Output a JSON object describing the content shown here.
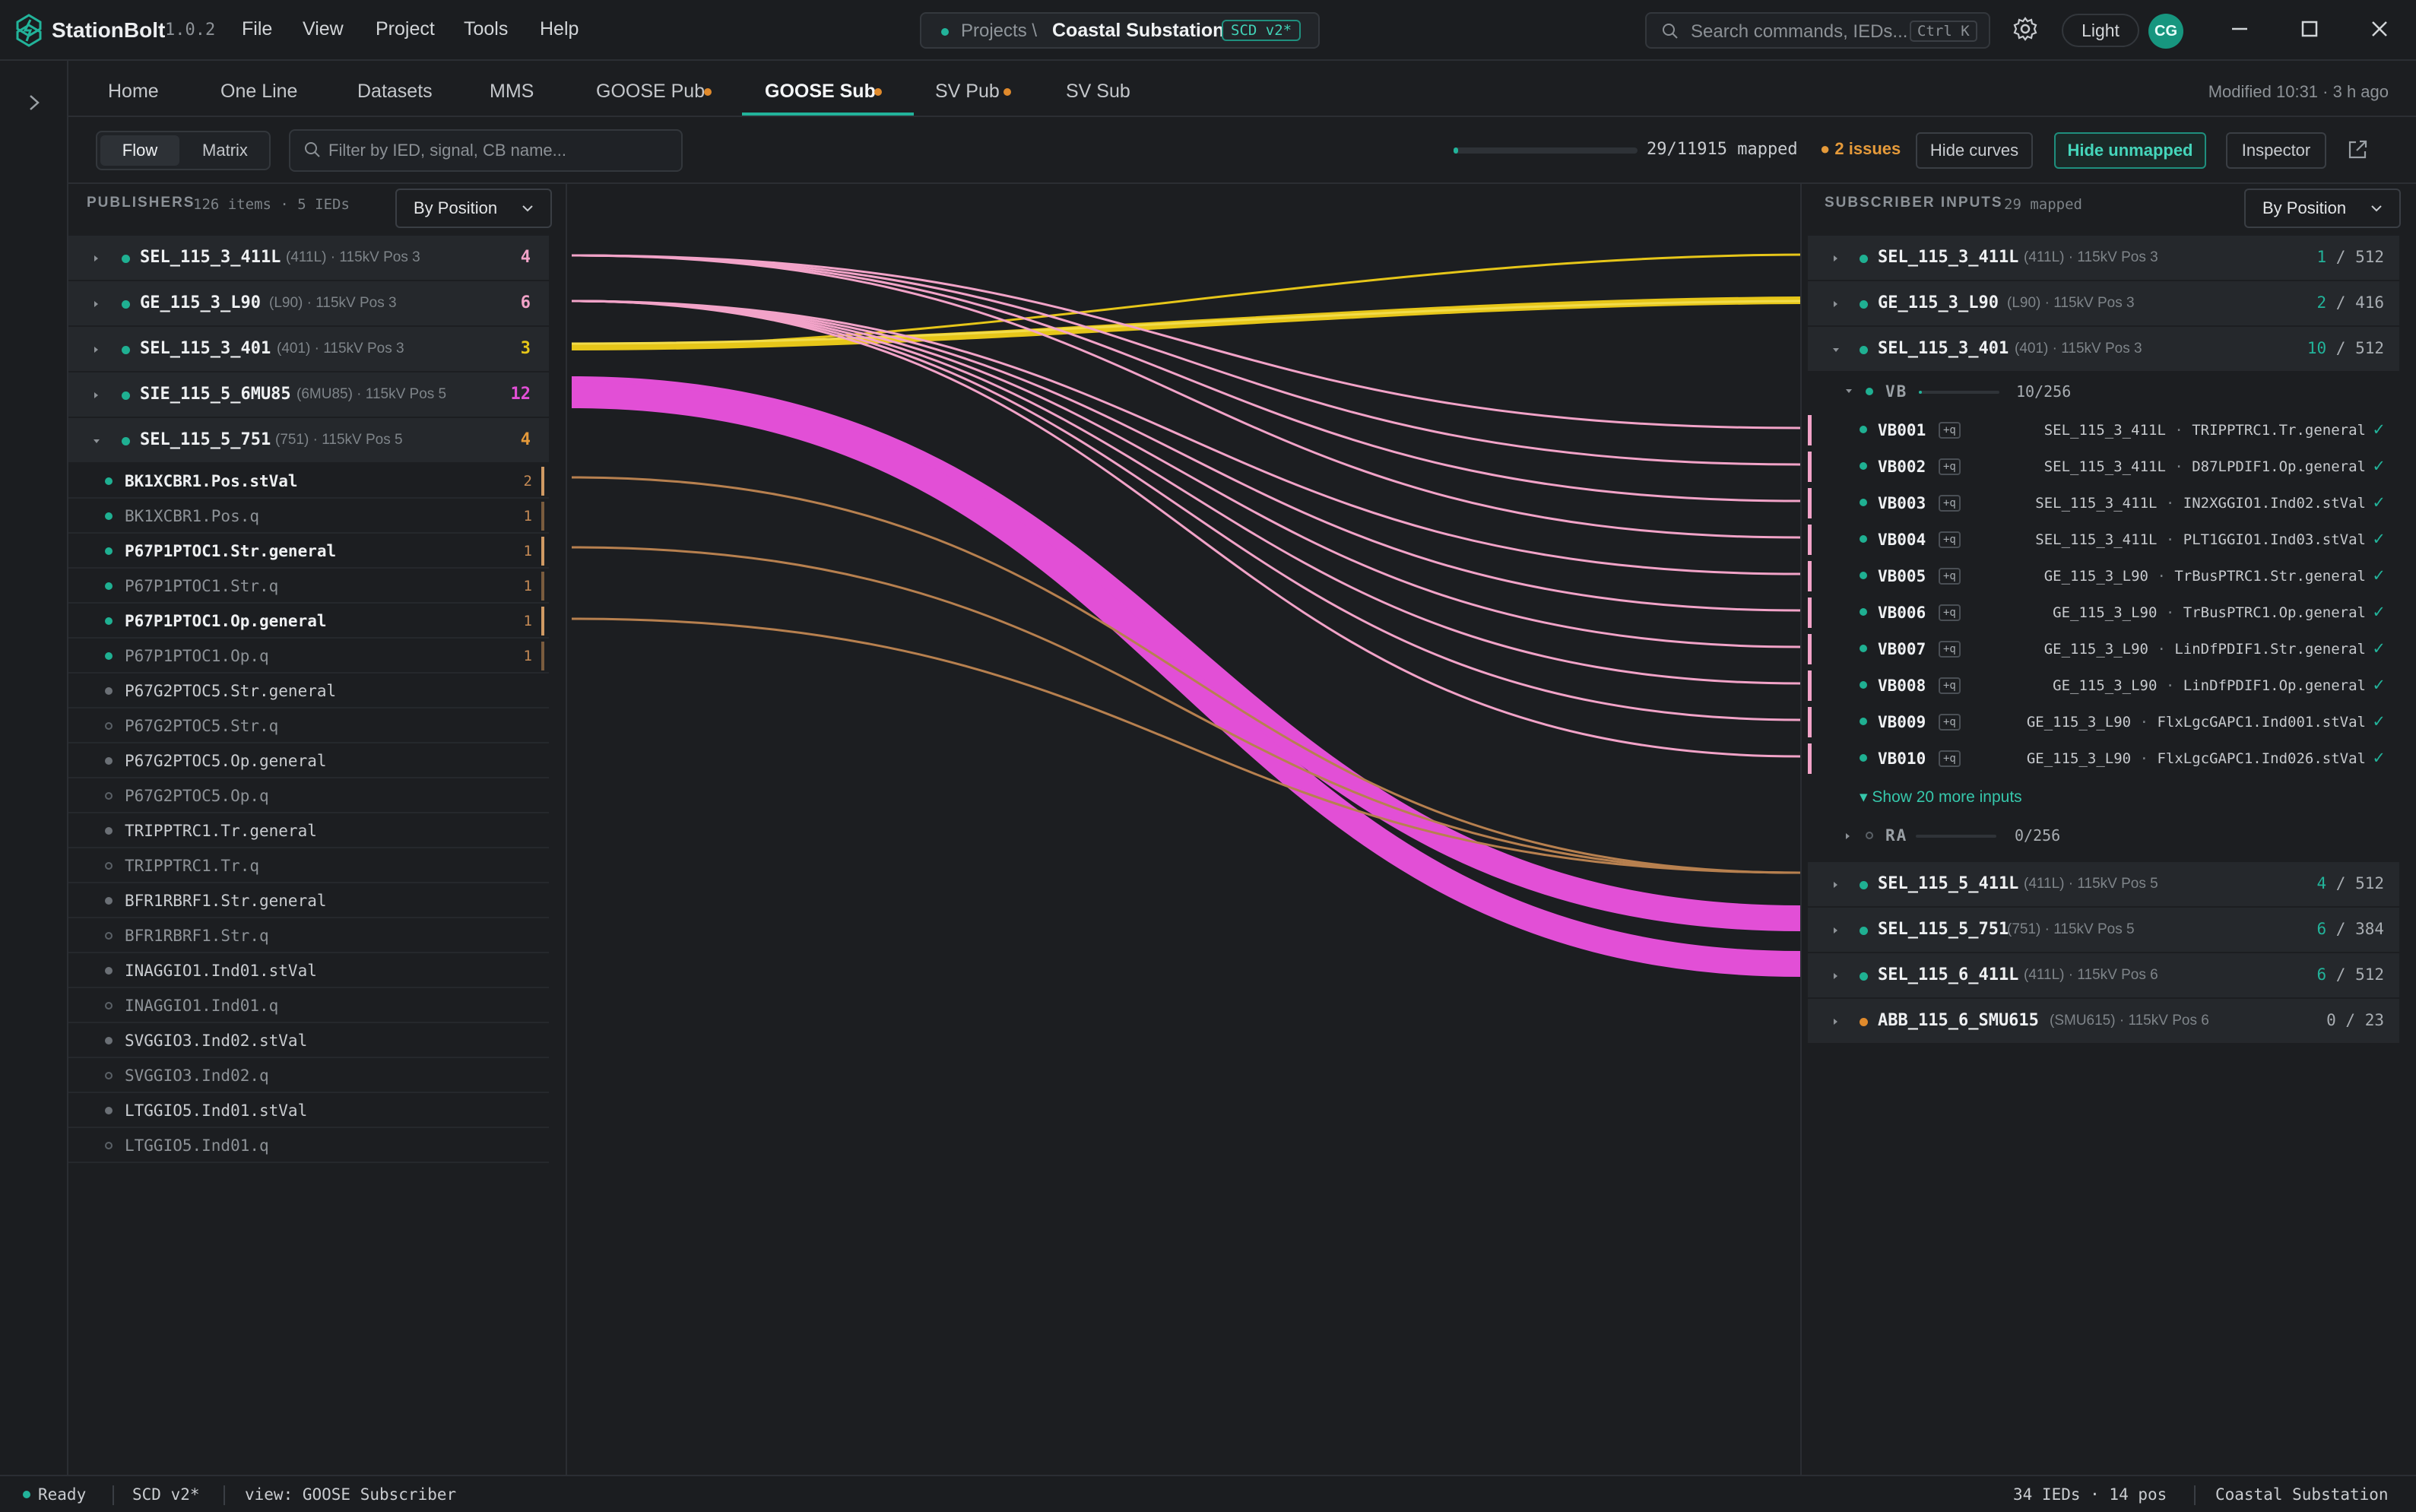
{
  "app": {
    "name": "StationBolt",
    "version": "1.0.2"
  },
  "menu": [
    "File",
    "View",
    "Project",
    "Tools",
    "Help"
  ],
  "project": {
    "crumb": "Projects \\",
    "name": "Coastal Substation",
    "badge": "SCD v2*"
  },
  "search": {
    "placeholder": "Search commands, IEDs...",
    "shortcut": "Ctrl K"
  },
  "theme_label": "Light",
  "avatar_initials": "CG",
  "tabs": [
    {
      "label": "Home",
      "dot": false
    },
    {
      "label": "One Line",
      "dot": false
    },
    {
      "label": "Datasets",
      "dot": false
    },
    {
      "label": "MMS",
      "dot": false
    },
    {
      "label": "GOOSE Pub",
      "dot": true
    },
    {
      "label": "GOOSE Sub",
      "dot": true,
      "active": true
    },
    {
      "label": "SV Pub",
      "dot": true
    },
    {
      "label": "SV Sub",
      "dot": false
    }
  ],
  "modified": "Modified 10:31 · 3 h ago",
  "toolbar": {
    "view_flow": "Flow",
    "view_matrix": "Matrix",
    "filter_placeholder": "Filter by IED, signal, CB name...",
    "mapped_fraction": 0.0024,
    "mapped_text": "29/11915 mapped",
    "issues": "● 2 issues",
    "hide_curves": "Hide curves",
    "hide_unmapped": "Hide unmapped",
    "inspector": "Inspector"
  },
  "colors": {
    "accent": "#22b39a",
    "warn": "#e08a2c",
    "pink": "#f2a3c8",
    "magenta": "#e24fd6",
    "yellow": "#e6c619",
    "brown": "#b7804f"
  },
  "publishers": {
    "title": "PUBLISHERS",
    "summary": "126 items · 5 IEDs",
    "sort": "By Position",
    "ieds": [
      {
        "name": "SEL_115_3_411L",
        "meta": "(411L) · 115kV Pos 3",
        "count": "4",
        "color": "#f2a3c8"
      },
      {
        "name": "GE_115_3_L90",
        "meta": "(L90) · 115kV Pos 3",
        "count": "6",
        "color": "#f2a3c8"
      },
      {
        "name": "SEL_115_3_401",
        "meta": "(401) · 115kV Pos 3",
        "count": "3",
        "color": "#e6c619"
      },
      {
        "name": "SIE_115_5_6MU85",
        "meta": "(6MU85) · 115kV Pos 5",
        "count": "12",
        "color": "#e24fd6"
      },
      {
        "name": "SEL_115_5_751",
        "meta": "(751) · 115kV Pos 5",
        "count": "4",
        "color": "#e59a3a",
        "open": true
      }
    ],
    "signals": [
      {
        "name": "BK1XCBR1.Pos.stVal",
        "count": "2",
        "state": "mapped",
        "bright": true
      },
      {
        "name": "BK1XCBR1.Pos.q",
        "count": "1",
        "state": "mapped",
        "bright": false
      },
      {
        "name": "P67P1PTOC1.Str.general",
        "count": "1",
        "state": "mapped",
        "bright": true
      },
      {
        "name": "P67P1PTOC1.Str.q",
        "count": "1",
        "state": "mapped",
        "bright": false
      },
      {
        "name": "P67P1PTOC1.Op.general",
        "count": "1",
        "state": "mapped",
        "bright": true
      },
      {
        "name": "P67P1PTOC1.Op.q",
        "count": "1",
        "state": "mapped",
        "bright": false
      },
      {
        "name": "P67G2PTOC5.Str.general",
        "count": "",
        "state": "filled",
        "bright": true
      },
      {
        "name": "P67G2PTOC5.Str.q",
        "count": "",
        "state": "empty",
        "bright": false
      },
      {
        "name": "P67G2PTOC5.Op.general",
        "count": "",
        "state": "filled",
        "bright": true
      },
      {
        "name": "P67G2PTOC5.Op.q",
        "count": "",
        "state": "empty",
        "bright": false
      },
      {
        "name": "TRIPPTRC1.Tr.general",
        "count": "",
        "state": "filled",
        "bright": true
      },
      {
        "name": "TRIPPTRC1.Tr.q",
        "count": "",
        "state": "empty",
        "bright": false
      },
      {
        "name": "BFR1RBRF1.Str.general",
        "count": "",
        "state": "filled",
        "bright": true
      },
      {
        "name": "BFR1RBRF1.Str.q",
        "count": "",
        "state": "empty",
        "bright": false
      },
      {
        "name": "INAGGIO1.Ind01.stVal",
        "count": "",
        "state": "filled",
        "bright": true
      },
      {
        "name": "INAGGIO1.Ind01.q",
        "count": "",
        "state": "empty",
        "bright": false
      },
      {
        "name": "SVGGIO3.Ind02.stVal",
        "count": "",
        "state": "filled",
        "bright": true
      },
      {
        "name": "SVGGIO3.Ind02.q",
        "count": "",
        "state": "empty",
        "bright": false
      },
      {
        "name": "LTGGIO5.Ind01.stVal",
        "count": "",
        "state": "filled",
        "bright": true
      },
      {
        "name": "LTGGIO5.Ind01.q",
        "count": "",
        "state": "empty",
        "bright": false
      }
    ]
  },
  "subscribers": {
    "title": "SUBSCRIBER INPUTS",
    "summary": "29 mapped",
    "sort": "By Position",
    "top_ieds": [
      {
        "name": "SEL_115_3_411L",
        "meta": "(411L) · 115kV Pos 3",
        "mapped": "1",
        "total": "512"
      },
      {
        "name": "GE_115_3_L90",
        "meta": "(L90) · 115kV Pos 3",
        "mapped": "2",
        "total": "416"
      },
      {
        "name": "SEL_115_3_401",
        "meta": "(401) · 115kV Pos 3",
        "mapped": "10",
        "total": "512",
        "open": true
      }
    ],
    "vb_group": {
      "name": "VB",
      "count": "10/256",
      "fraction": 0.04
    },
    "inputs": [
      {
        "name": "VB001",
        "q": "+q",
        "src_ied": "SEL_115_3_411L",
        "src_sig": "TRIPPTRC1.Tr.general"
      },
      {
        "name": "VB002",
        "q": "+q",
        "src_ied": "SEL_115_3_411L",
        "src_sig": "D87LPDIF1.Op.general"
      },
      {
        "name": "VB003",
        "q": "+q",
        "src_ied": "SEL_115_3_411L",
        "src_sig": "IN2XGGIO1.Ind02.stVal"
      },
      {
        "name": "VB004",
        "q": "+q",
        "src_ied": "SEL_115_3_411L",
        "src_sig": "PLT1GGIO1.Ind03.stVal"
      },
      {
        "name": "VB005",
        "q": "+q",
        "src_ied": "GE_115_3_L90",
        "src_sig": "TrBusPTRC1.Str.general"
      },
      {
        "name": "VB006",
        "q": "+q",
        "src_ied": "GE_115_3_L90",
        "src_sig": "TrBusPTRC1.Op.general"
      },
      {
        "name": "VB007",
        "q": "+q",
        "src_ied": "GE_115_3_L90",
        "src_sig": "LinDfPDIF1.Str.general"
      },
      {
        "name": "VB008",
        "q": "+q",
        "src_ied": "GE_115_3_L90",
        "src_sig": "LinDfPDIF1.Op.general"
      },
      {
        "name": "VB009",
        "q": "+q",
        "src_ied": "GE_115_3_L90",
        "src_sig": "FlxLgcGAPC1.Ind001.stVal"
      },
      {
        "name": "VB010",
        "q": "+q",
        "src_ied": "GE_115_3_L90",
        "src_sig": "FlxLgcGAPC1.Ind026.stVal"
      }
    ],
    "show_more": "Show 20 more inputs",
    "ra_group": {
      "name": "RA",
      "count": "0/256",
      "fraction": 0
    },
    "bottom_ieds": [
      {
        "name": "SEL_115_5_411L",
        "meta": "(411L) · 115kV Pos 5",
        "mapped": "4",
        "total": "512",
        "dot": "#1fb092"
      },
      {
        "name": "SEL_115_5_751",
        "meta": "(751) · 115kV Pos 5",
        "mapped": "6",
        "total": "384",
        "dot": "#1fb092"
      },
      {
        "name": "SEL_115_6_411L",
        "meta": "(411L) · 115kV Pos 6",
        "mapped": "6",
        "total": "512",
        "dot": "#1fb092"
      },
      {
        "name": "ABB_115_6_SMU615",
        "meta": "(SMU615) · 115kV Pos 6",
        "mapped": "0",
        "total": "23",
        "dot": "#e08a2c"
      }
    ]
  },
  "status": {
    "ready": "Ready",
    "scd": "SCD v2*",
    "view": "view: GOOSE Subscriber",
    "counts": "34 IEDs · 14 pos",
    "project": "Coastal Substation"
  }
}
